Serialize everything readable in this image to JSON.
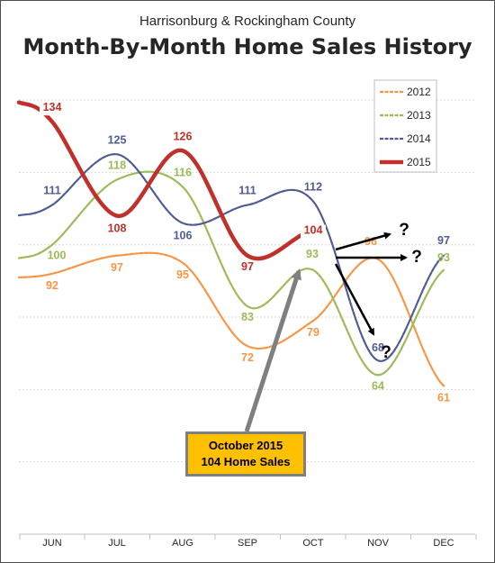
{
  "chart_data": {
    "type": "line",
    "subtitle": "Harrisonburg & Rockingham County",
    "title": "Month-By-Month Home Sales History",
    "categories": [
      "JUN",
      "JUL",
      "AUG",
      "SEP",
      "OCT",
      "NOV",
      "DEC"
    ],
    "ylim": [
      20,
      145
    ],
    "grid": true,
    "legend_position": "top-right",
    "series": [
      {
        "name": "2012",
        "color": "#f79646",
        "values": [
          92,
          97,
          95,
          72,
          79,
          96,
          61
        ]
      },
      {
        "name": "2013",
        "color": "#9bbb59",
        "values": [
          100,
          118,
          116,
          83,
          93,
          64,
          93
        ]
      },
      {
        "name": "2014",
        "color": "#4f5b93",
        "values": [
          111,
          125,
          106,
          111,
          112,
          68,
          97
        ]
      },
      {
        "name": "2015",
        "color": "#c0312b",
        "values": [
          134,
          108,
          126,
          97,
          104,
          null,
          null
        ]
      }
    ],
    "annotations": {
      "callout_line1": "October 2015",
      "callout_line2": "104 Home Sales",
      "question_mark": "?"
    }
  }
}
